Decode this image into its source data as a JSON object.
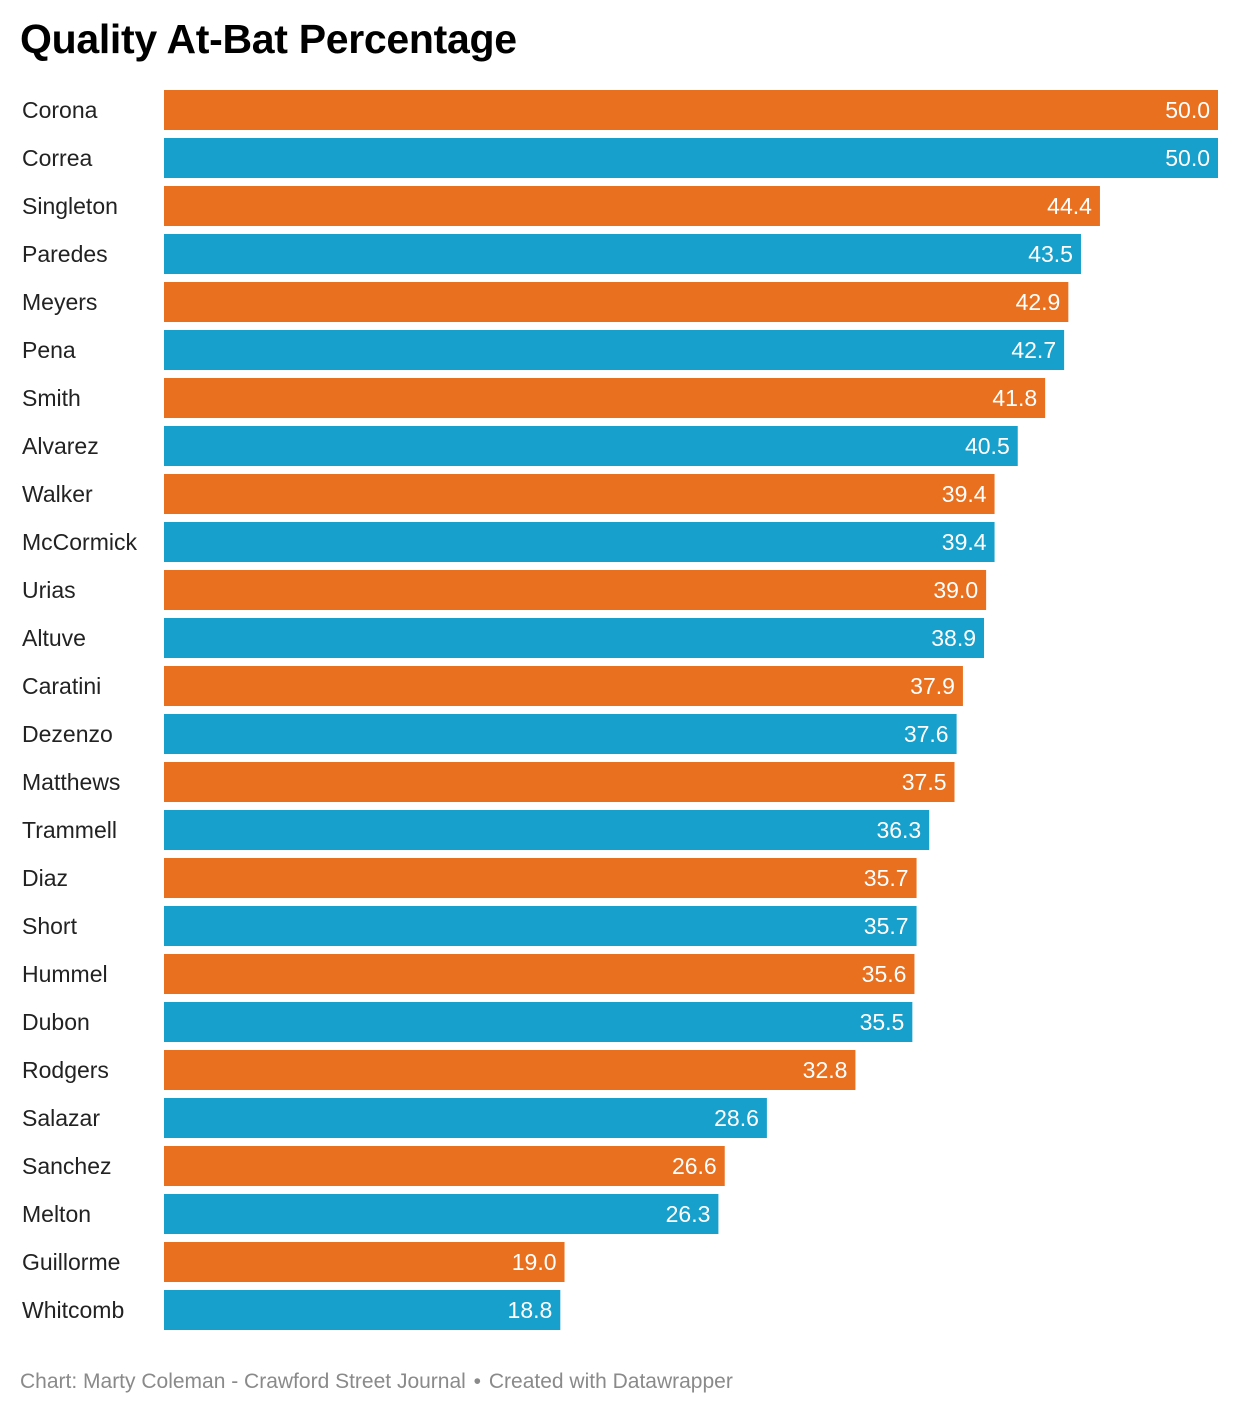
{
  "chart_data": {
    "type": "bar",
    "orientation": "horizontal",
    "title": "Quality At-Bat Percentage",
    "categories": [
      "Corona",
      "Correa",
      "Singleton",
      "Paredes",
      "Meyers",
      "Pena",
      "Smith",
      "Alvarez",
      "Walker",
      "McCormick",
      "Urias",
      "Altuve",
      "Caratini",
      "Dezenzo",
      "Matthews",
      "Trammell",
      "Diaz",
      "Short",
      "Hummel",
      "Dubon",
      "Rodgers",
      "Salazar",
      "Sanchez",
      "Melton",
      "Guillorme",
      "Whitcomb"
    ],
    "values": [
      50.0,
      50.0,
      44.4,
      43.5,
      42.9,
      42.7,
      41.8,
      40.5,
      39.4,
      39.4,
      39.0,
      38.9,
      37.9,
      37.6,
      37.5,
      36.3,
      35.7,
      35.7,
      35.6,
      35.5,
      32.8,
      28.6,
      26.6,
      26.3,
      19.0,
      18.8
    ],
    "value_labels": [
      "50.0",
      "50.0",
      "44.4",
      "43.5",
      "42.9",
      "42.7",
      "41.8",
      "40.5",
      "39.4",
      "39.4",
      "39.0",
      "38.9",
      "37.9",
      "37.6",
      "37.5",
      "36.3",
      "35.7",
      "35.7",
      "35.6",
      "35.5",
      "32.8",
      "28.6",
      "26.6",
      "26.3",
      "19.0",
      "18.8"
    ],
    "xlim": [
      0,
      50
    ],
    "grid": false,
    "legend": "none",
    "bar_colors": [
      "#e8701f",
      "#18a0cc"
    ],
    "label_color": "#ffffff"
  },
  "footer": {
    "credit": "Chart: Marty Coleman - Crawford Street Journal",
    "separator": "•",
    "tool": "Created with Datawrapper"
  }
}
